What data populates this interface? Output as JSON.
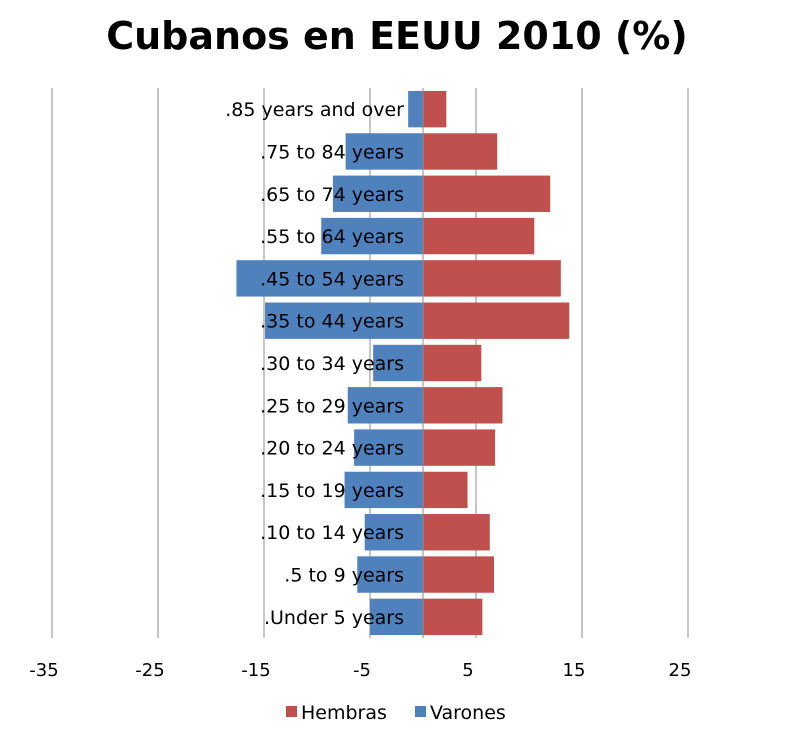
{
  "chart_data": {
    "type": "bar",
    "orientation": "horizontal",
    "title": "Cubanos en EEUU 2010 (%)",
    "categories": [
      ".85 years and over",
      ".75 to 84 years",
      ".65 to 74 years",
      ".55 to 64 years",
      ".45 to 54 years",
      ".35 to 44 years",
      ".30 to 34 years",
      ".25 to 29 years",
      ".20 to 24 years",
      ".15 to 19 years",
      ".10 to 14 years",
      ".5 to 9 years",
      ".Under 5 years"
    ],
    "series": [
      {
        "name": "Hembras",
        "color": "#c0504d",
        "values": [
          2.2,
          7.0,
          12.0,
          10.5,
          13.0,
          13.8,
          5.5,
          7.5,
          6.8,
          4.2,
          6.3,
          6.7,
          5.6
        ]
      },
      {
        "name": "Varones",
        "color": "#4f81bd",
        "values": [
          -1.4,
          -7.3,
          -8.5,
          -9.6,
          -17.6,
          -14.9,
          -4.7,
          -7.1,
          -6.5,
          -7.4,
          -5.5,
          -6.2,
          -5.0
        ]
      }
    ],
    "xlim": [
      -35,
      25
    ],
    "xticks": [
      -35,
      -25,
      -15,
      -5,
      5,
      15,
      25
    ],
    "grid": true,
    "legend": "bottom"
  }
}
